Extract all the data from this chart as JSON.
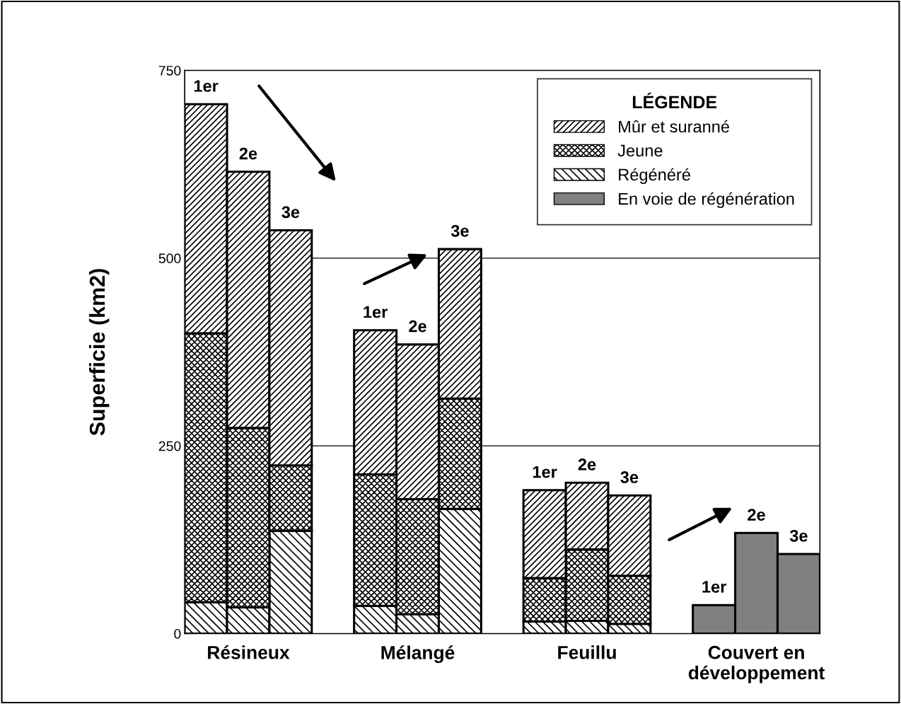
{
  "chart_data": {
    "type": "bar",
    "stacked": true,
    "ylabel": "Superficie (km2)",
    "legend_title": "LÉGENDE",
    "legend": "top right",
    "grid": "y",
    "categories": [
      null,
      "Résineux",
      null,
      null,
      null,
      "Mélangé",
      null,
      null,
      null,
      "Feuillu",
      null,
      null,
      null,
      "Couvert en\ndéveloppement",
      null
    ],
    "series": [
      {
        "name": "Régénéré",
        "color": "#000000",
        "values": [
          42,
          35,
          137,
          null,
          37,
          26,
          166,
          null,
          16,
          17,
          13,
          null,
          null,
          null,
          null
        ]
      },
      {
        "name": "Jeune",
        "color": "#000000",
        "values": [
          358,
          239,
          87,
          null,
          175,
          153,
          147,
          null,
          58,
          95,
          64,
          null,
          null,
          null,
          null
        ]
      },
      {
        "name": "Mûr et suranné",
        "color": "#000000",
        "values": [
          305,
          341,
          313,
          null,
          192,
          206,
          199,
          null,
          117,
          89,
          107,
          null,
          null,
          null,
          null
        ]
      },
      {
        "name": "En voie de régénération",
        "color": "#808080",
        "values": [
          null,
          null,
          null,
          null,
          null,
          null,
          null,
          null,
          null,
          null,
          null,
          null,
          38,
          134,
          106
        ]
      }
    ],
    "ylim": [
      0,
      750
    ],
    "yticks": [
      0,
      250,
      500,
      750
    ],
    "annotations": [
      {
        "text": "1er",
        "y": 705
      },
      {
        "text": "2e",
        "y": 615
      },
      {
        "text": "3e",
        "y": 537
      },
      {
        "text": "1er",
        "y": 404
      },
      {
        "text": "2e",
        "y": 385
      },
      {
        "text": "3e",
        "y": 512
      },
      {
        "text": "1er",
        "y": 191
      },
      {
        "text": "2e",
        "y": 201
      },
      {
        "text": "3e",
        "y": 184
      },
      {
        "text": "1er",
        "y": 38
      },
      {
        "text": "2e",
        "y": 134
      },
      {
        "text": "3e",
        "y": 106
      }
    ]
  }
}
